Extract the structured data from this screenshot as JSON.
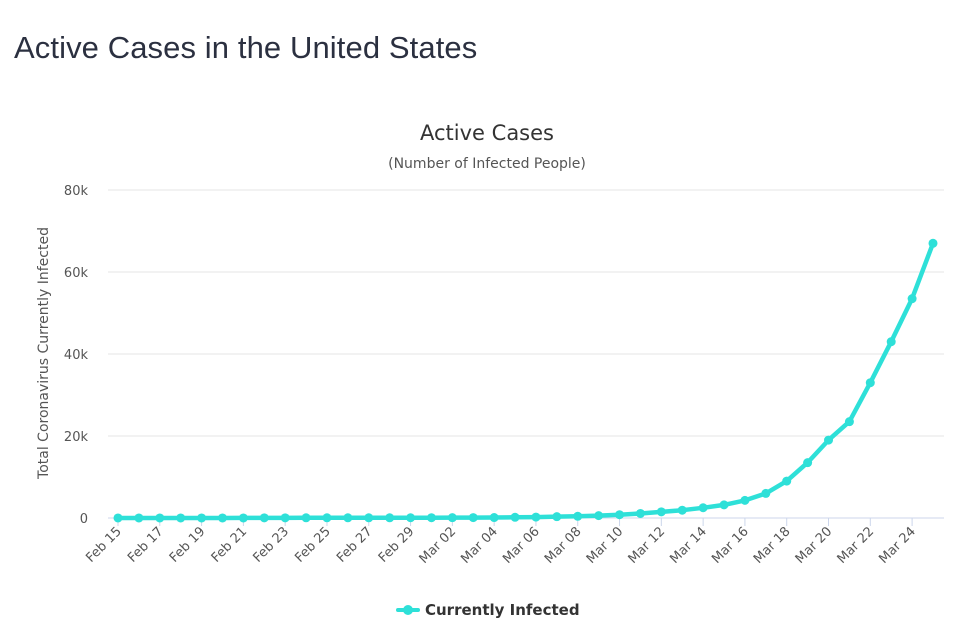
{
  "page": {
    "title": "Active Cases in the United States"
  },
  "chart_data": {
    "type": "line",
    "title": "Active Cases",
    "subtitle": "(Number of Infected People)",
    "xlabel": "",
    "ylabel": "Total Coronavirus Currently Infected",
    "ylim": [
      0,
      80000
    ],
    "yticks": [
      0,
      20000,
      40000,
      60000,
      80000
    ],
    "ytick_labels": [
      "0",
      "20k",
      "40k",
      "60k",
      "80k"
    ],
    "grid": true,
    "legend_position": "bottom-center",
    "x": [
      "Feb 15",
      "Feb 16",
      "Feb 17",
      "Feb 18",
      "Feb 19",
      "Feb 20",
      "Feb 21",
      "Feb 22",
      "Feb 23",
      "Feb 24",
      "Feb 25",
      "Feb 26",
      "Feb 27",
      "Feb 28",
      "Feb 29",
      "Mar 01",
      "Mar 02",
      "Mar 03",
      "Mar 04",
      "Mar 05",
      "Mar 06",
      "Mar 07",
      "Mar 08",
      "Mar 09",
      "Mar 10",
      "Mar 11",
      "Mar 12",
      "Mar 13",
      "Mar 14",
      "Mar 15",
      "Mar 16",
      "Mar 17",
      "Mar 18",
      "Mar 19",
      "Mar 20",
      "Mar 21",
      "Mar 22",
      "Mar 23",
      "Mar 24",
      "Mar 25"
    ],
    "xtick_labels": [
      "Feb 15",
      "Feb 17",
      "Feb 19",
      "Feb 21",
      "Feb 23",
      "Feb 25",
      "Feb 27",
      "Feb 29",
      "Mar 02",
      "Mar 04",
      "Mar 06",
      "Mar 08",
      "Mar 10",
      "Mar 12",
      "Mar 14",
      "Mar 16",
      "Mar 18",
      "Mar 20",
      "Mar 22",
      "Mar 24"
    ],
    "series": [
      {
        "name": "Currently Infected",
        "color": "#2ee0d8",
        "values": [
          12,
          12,
          12,
          12,
          12,
          12,
          14,
          33,
          33,
          50,
          50,
          52,
          52,
          56,
          60,
          70,
          90,
          100,
          120,
          170,
          220,
          330,
          420,
          580,
          800,
          1100,
          1500,
          1900,
          2500,
          3200,
          4300,
          6000,
          9000,
          13500,
          19000,
          23500,
          33000,
          43000,
          53500,
          67000
        ]
      }
    ]
  }
}
